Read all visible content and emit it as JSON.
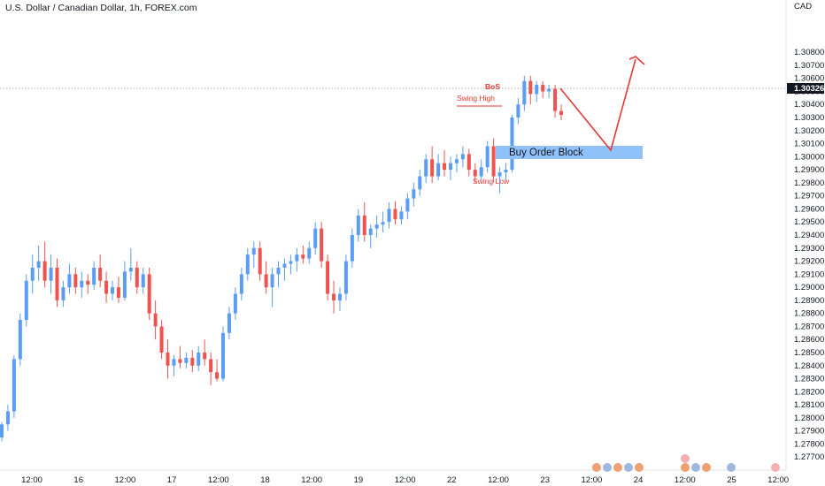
{
  "header": {
    "title": "U.S. Dollar / Canadian Dollar, 1h, FOREX.com"
  },
  "price_axis": {
    "currency": "CAD",
    "last_price": "1.30326"
  },
  "chart_data": {
    "type": "candlestick",
    "title": "U.S. Dollar / Canadian Dollar, 1h, FOREX.com",
    "ylim": [
      1.276,
      1.312
    ],
    "y_ticks": [
      "1.30800",
      "1.30700",
      "1.30600",
      "1.30500",
      "1.30400",
      "1.30300",
      "1.30200",
      "1.30100",
      "1.30000",
      "1.29900",
      "1.29800",
      "1.29700",
      "1.29600",
      "1.29500",
      "1.29400",
      "1.29300",
      "1.29200",
      "1.29100",
      "1.29000",
      "1.28900",
      "1.28800",
      "1.28700",
      "1.28600",
      "1.28500",
      "1.28400",
      "1.28300",
      "1.28200",
      "1.28100",
      "1.28000",
      "1.27900",
      "1.27800",
      "1.27700"
    ],
    "x_ticks": [
      "12:00",
      "16",
      "12:00",
      "17",
      "12:00",
      "18",
      "12:00",
      "19",
      "12:00",
      "22",
      "12:00",
      "23",
      "12:00",
      "24",
      "12:00",
      "25",
      "12:00"
    ],
    "up_color": "#5b9cf5",
    "down_color": "#ef5350",
    "series": [
      [
        1.2785,
        1.2797,
        1.2782,
        1.2795
      ],
      [
        1.2795,
        1.281,
        1.279,
        1.2805
      ],
      [
        1.2805,
        1.2848,
        1.28,
        1.2845
      ],
      [
        1.2845,
        1.288,
        1.284,
        1.2875
      ],
      [
        1.2875,
        1.291,
        1.287,
        1.2905
      ],
      [
        1.2905,
        1.2925,
        1.2895,
        1.2915
      ],
      [
        1.2915,
        1.2932,
        1.2905,
        1.292
      ],
      [
        1.292,
        1.2935,
        1.29,
        1.2905
      ],
      [
        1.2905,
        1.2925,
        1.2895,
        1.2915
      ],
      [
        1.2915,
        1.2922,
        1.2885,
        1.289
      ],
      [
        1.289,
        1.2905,
        1.2885,
        1.29
      ],
      [
        1.29,
        1.2918,
        1.2895,
        1.291
      ],
      [
        1.291,
        1.2915,
        1.2895,
        1.29
      ],
      [
        1.29,
        1.2912,
        1.2892,
        1.2905
      ],
      [
        1.2905,
        1.291,
        1.2895,
        1.2902
      ],
      [
        1.2902,
        1.292,
        1.2898,
        1.2915
      ],
      [
        1.2915,
        1.2925,
        1.29,
        1.2905
      ],
      [
        1.2905,
        1.2912,
        1.2888,
        1.2895
      ],
      [
        1.2895,
        1.2905,
        1.289,
        1.29
      ],
      [
        1.29,
        1.2908,
        1.2888,
        1.2892
      ],
      [
        1.2892,
        1.292,
        1.289,
        1.2912
      ],
      [
        1.2912,
        1.293,
        1.2905,
        1.2915
      ],
      [
        1.2915,
        1.292,
        1.2895,
        1.29
      ],
      [
        1.29,
        1.2915,
        1.2895,
        1.291
      ],
      [
        1.291,
        1.2915,
        1.2875,
        1.288
      ],
      [
        1.288,
        1.289,
        1.286,
        1.287
      ],
      [
        1.287,
        1.2875,
        1.2845,
        1.285
      ],
      [
        1.285,
        1.286,
        1.283,
        1.284
      ],
      [
        1.284,
        1.2848,
        1.2832,
        1.2845
      ],
      [
        1.2845,
        1.2855,
        1.2838,
        1.2842
      ],
      [
        1.2842,
        1.285,
        1.2838,
        1.2846
      ],
      [
        1.2846,
        1.2852,
        1.2835,
        1.284
      ],
      [
        1.284,
        1.2855,
        1.2836,
        1.285
      ],
      [
        1.285,
        1.286,
        1.284,
        1.2845
      ],
      [
        1.2845,
        1.285,
        1.2825,
        1.2835
      ],
      [
        1.2835,
        1.2845,
        1.2828,
        1.283
      ],
      [
        1.283,
        1.287,
        1.2828,
        1.2865
      ],
      [
        1.2865,
        1.2885,
        1.286,
        1.288
      ],
      [
        1.288,
        1.29,
        1.2875,
        1.2895
      ],
      [
        1.2895,
        1.2915,
        1.289,
        1.291
      ],
      [
        1.291,
        1.293,
        1.2905,
        1.2925
      ],
      [
        1.2925,
        1.2935,
        1.2915,
        1.293
      ],
      [
        1.293,
        1.2935,
        1.2905,
        1.291
      ],
      [
        1.291,
        1.292,
        1.2895,
        1.29
      ],
      [
        1.29,
        1.2915,
        1.2885,
        1.291
      ],
      [
        1.291,
        1.292,
        1.29,
        1.2915
      ],
      [
        1.2915,
        1.2922,
        1.2905,
        1.2918
      ],
      [
        1.2918,
        1.2925,
        1.291,
        1.292
      ],
      [
        1.292,
        1.293,
        1.2912,
        1.2925
      ],
      [
        1.2925,
        1.2932,
        1.2918,
        1.2922
      ],
      [
        1.2922,
        1.2935,
        1.2918,
        1.293
      ],
      [
        1.293,
        1.295,
        1.2925,
        1.2945
      ],
      [
        1.2945,
        1.295,
        1.2915,
        1.292
      ],
      [
        1.292,
        1.2925,
        1.289,
        1.2895
      ],
      [
        1.2895,
        1.2905,
        1.288,
        1.289
      ],
      [
        1.289,
        1.29,
        1.2882,
        1.2895
      ],
      [
        1.2895,
        1.2925,
        1.289,
        1.292
      ],
      [
        1.292,
        1.2945,
        1.2915,
        1.294
      ],
      [
        1.294,
        1.296,
        1.2935,
        1.2955
      ],
      [
        1.2955,
        1.2965,
        1.2935,
        1.294
      ],
      [
        1.294,
        1.2948,
        1.293,
        1.2945
      ],
      [
        1.2945,
        1.2955,
        1.2938,
        1.2948
      ],
      [
        1.2948,
        1.2958,
        1.2942,
        1.295
      ],
      [
        1.295,
        1.2965,
        1.2945,
        1.296
      ],
      [
        1.296,
        1.2966,
        1.2948,
        1.2952
      ],
      [
        1.2952,
        1.2962,
        1.2948,
        1.2958
      ],
      [
        1.2958,
        1.2972,
        1.2952,
        1.2968
      ],
      [
        1.2968,
        1.298,
        1.2962,
        1.2975
      ],
      [
        1.2975,
        1.299,
        1.297,
        1.2985
      ],
      [
        1.2985,
        1.3002,
        1.298,
        1.2998
      ],
      [
        1.2998,
        1.3008,
        1.298,
        1.2985
      ],
      [
        1.2985,
        1.3002,
        1.2982,
        1.2995
      ],
      [
        1.2995,
        1.3005,
        1.2985,
        1.299
      ],
      [
        1.299,
        1.3,
        1.2982,
        1.2995
      ],
      [
        1.2995,
        1.3002,
        1.2988,
        1.2998
      ],
      [
        1.2998,
        1.3008,
        1.2992,
        1.3002
      ],
      [
        1.3002,
        1.3006,
        1.2985,
        1.299
      ],
      [
        1.299,
        1.2995,
        1.298,
        1.2985
      ],
      [
        1.2985,
        1.2998,
        1.2982,
        1.2992
      ],
      [
        1.2992,
        1.3012,
        1.2988,
        1.3008
      ],
      [
        1.3008,
        1.3014,
        1.298,
        1.2985
      ],
      [
        1.2985,
        1.2992,
        1.2972,
        1.2988
      ],
      [
        1.2988,
        1.2995,
        1.2982,
        1.299
      ],
      [
        1.299,
        1.3032,
        1.2988,
        1.303
      ],
      [
        1.303,
        1.3045,
        1.3025,
        1.304
      ],
      [
        1.304,
        1.3062,
        1.3035,
        1.3058
      ],
      [
        1.3058,
        1.3062,
        1.304,
        1.3048
      ],
      [
        1.3048,
        1.3058,
        1.3042,
        1.3055
      ],
      [
        1.3055,
        1.3058,
        1.3045,
        1.305
      ],
      [
        1.305,
        1.3055,
        1.3045,
        1.3052
      ],
      [
        1.3052,
        1.3055,
        1.303,
        1.3035
      ],
      [
        1.3035,
        1.304,
        1.3028,
        1.3032
      ]
    ]
  },
  "annotations": {
    "bos": "BoS",
    "swing_high": "Swing High",
    "swing_low": "Swing Low",
    "order_block": "Buy Order Block"
  }
}
